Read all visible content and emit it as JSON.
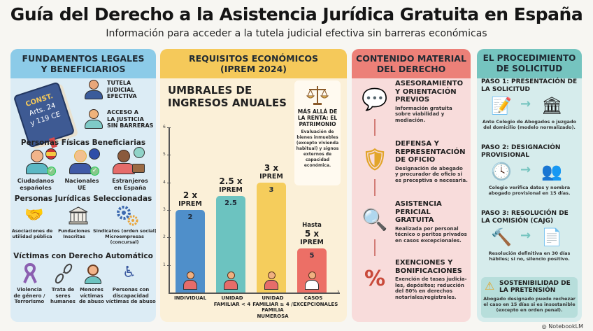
{
  "header": {
    "title": "Guía del Derecho a la Asistencia Jurídica Gratuita en España",
    "subtitle": "Información para acceder a la tutela judicial efectiva sin barreras económicas"
  },
  "col1": {
    "heading_line1": "FUNDAMENTOS LEGALES",
    "heading_line2": "Y BENEFICIARIOS",
    "book": {
      "line1": "CONST.",
      "line2": "Arts. 24",
      "line3": "y 119 CE"
    },
    "principles": [
      {
        "line1": "TUTELA",
        "line2": "JUDICIAL",
        "line3": "EFECTIVA",
        "icon": "person-icon"
      },
      {
        "line1": "ACCESO A",
        "line2": "LA JUSTICIA",
        "line3": "SIN BARRERAS",
        "icon": "person-icon"
      }
    ],
    "fisicas_title": "Personas Físicas Beneficiarias",
    "fisicas": [
      {
        "line1": "Ciudadanos",
        "line2": "españoles",
        "icon": "spain-flag-icon"
      },
      {
        "line1": "Nacionales",
        "line2": "UE",
        "icon": "eu-flag-icon"
      },
      {
        "line1": "Estranjeros",
        "line2": "en España",
        "icon": "globe-suitcase-icon"
      }
    ],
    "juridicas_title": "Personas Jurídicas Seleccionadas",
    "juridicas": [
      {
        "line1": "Asociaciones de",
        "line2": "utilidad pública",
        "line3": "",
        "icon": "handshake-icon"
      },
      {
        "line1": "Fundaciones",
        "line2": "Inscritas",
        "line3": "",
        "icon": "building-icon"
      },
      {
        "line1": "Sindicatos (orden social)",
        "line2": "Microempresas",
        "line3": "(concursal)",
        "icon": "gears-icon"
      }
    ],
    "victimas_title": "Víctimas con Derecho Automático",
    "victimas": [
      {
        "line1": "Violencia",
        "line2": "de género /",
        "line3": "Terrorismo",
        "icon": "ribbon-icon"
      },
      {
        "line1": "Trata de",
        "line2": "seres",
        "line3": "humanes",
        "icon": "broken-chain-icon"
      },
      {
        "line1": "Menores",
        "line2": "víctimas",
        "line3": "de abuso",
        "icon": "child-icon"
      },
      {
        "line1": "Personas con",
        "line2": "discapacidad",
        "line3": "víctimas de abuso",
        "icon": "wheelchair-icon"
      }
    ]
  },
  "col2": {
    "heading_line1": "REQUISITOS ECONÓMICOS",
    "heading_line2": "(IPREM 2024)",
    "chart_title_line1": "UMBRALES DE",
    "chart_title_line2": "INGRESOS ANUALES",
    "patrimonio": {
      "icon": "scales-icon",
      "title_line1": "MÁS ALLÁ DE",
      "title_line2": "LA RENTA: EL",
      "title_line3": "PATRIMONIO",
      "text_lines": [
        "Evaluación de",
        "bienes inmuebles",
        "(excepto vivienda",
        "habitual) y signos",
        "externos de",
        "capacidad",
        "económica."
      ]
    }
  },
  "chart_data": {
    "type": "bar",
    "title": "UMBRALES DE INGRESOS ANUALES",
    "xlabel": "",
    "ylabel": "",
    "ylim": [
      0,
      6
    ],
    "yticks": [
      "1",
      "2",
      "3",
      "4",
      "5",
      "6"
    ],
    "categories": [
      {
        "line1": "INDIVIDUAL",
        "line2": "",
        "line3": "",
        "line4": ""
      },
      {
        "line1": "UNIDAD",
        "line2": "FAMILIAR < 4",
        "line3": "",
        "line4": ""
      },
      {
        "line1": "UNIDAD",
        "line2": "FAMILIAR ≥ 4 /",
        "line3": "FAMILIA",
        "line4": "NUMEROSA"
      },
      {
        "line1": "CASOS",
        "line2": "EXCEPCIONALES",
        "line3": "",
        "line4": ""
      }
    ],
    "values": [
      2,
      2.5,
      3,
      5
    ],
    "value_labels": [
      "2",
      "2.5",
      "3",
      "5"
    ],
    "top_labels": [
      {
        "pre": "",
        "main": "2 x",
        "sub": "IPREM"
      },
      {
        "pre": "",
        "main": "2.5 x",
        "sub": "IPREM"
      },
      {
        "pre": "",
        "main": "3 x",
        "sub": "IPREM"
      },
      {
        "pre": "Hasta",
        "main": "5 x",
        "sub": "IPREM"
      }
    ],
    "colors": [
      "#4f8fca",
      "#6cc3c0",
      "#f5cd5c",
      "#ec6f66"
    ],
    "grid": false
  },
  "col3": {
    "heading_line1": "CONTENIDO MATERIAL",
    "heading_line2": "DEL DERECHO",
    "items": [
      {
        "title_lines": [
          "ASESORAMIENTO",
          "Y ORIENTACIÓN",
          "PREVIOS"
        ],
        "text_lines": [
          "Información gratuita",
          "sobre viabilidad y",
          "mediación."
        ],
        "icon": "consultation-icon"
      },
      {
        "title_lines": [
          "DEFENSA Y",
          "REPRESENTACIÓN",
          "DE OFICIO"
        ],
        "text_lines": [
          "Designación de abegado",
          "y procurador de oficio si",
          "es preceptiva o necesaria."
        ],
        "icon": "shield-gavel-icon"
      },
      {
        "title_lines": [
          "ASISTENCIA",
          "PERICIAL",
          "GRATUITA"
        ],
        "text_lines": [
          "Realizada por personal",
          "técnico o peritos privados",
          "en casos excepcionales."
        ],
        "icon": "magnifier-document-icon"
      },
      {
        "title_lines": [
          "EXENCIONES Y",
          "BONIFICACIONES"
        ],
        "text_lines": [
          "Exención de tasas judicia-",
          "les, depósitos; reducción",
          "del 80% en derechos",
          "notariales/registrales."
        ],
        "icon": "coins-stamp-icon"
      }
    ]
  },
  "col4": {
    "heading_line1": "EL PROCEDIMIENTO",
    "heading_line2": "DE SOLICITUD",
    "steps": [
      {
        "title_lines": [
          "PASO 1: PRESENTACIÓN DE",
          "LA SOLICITUD"
        ],
        "text_lines": [
          "Ante Colegio de Abogados o juzgado",
          "del domicilio (modelo normalizado)."
        ],
        "icon_from": "document-pen-icon",
        "icon_to": "courthouse-icon"
      },
      {
        "title_lines": [
          "PASO 2: DESIGNACIÓN",
          "PROVISIONAL"
        ],
        "text_lines": [
          "Colegio verifica datos y nombra",
          "abogado provisional en 15 días."
        ],
        "icon_from": "clock-icon",
        "icon_to": "lawyers-icon"
      },
      {
        "title_lines": [
          "PASO 3: RESOLUCIÓN DE",
          "LA COMISIÓN (CAJG)"
        ],
        "text_lines": [
          "Resolución definitiva en 30 días",
          "hábiles; si no, silencio positivo."
        ],
        "icon_from": "gavel-icon",
        "icon_to": "approved-document-icon"
      }
    ],
    "warning": {
      "icon": "warning-icon",
      "title_line1": "SOSTENIBILIDAD DE",
      "title_line2": "LA PRETENSIÓN",
      "text_lines": [
        "Abogado designado puede rechezar",
        "el caso en 15 días si es insostanible",
        "(excepto en orden penal)."
      ]
    }
  },
  "footer": {
    "brand": "NotebookLM"
  }
}
